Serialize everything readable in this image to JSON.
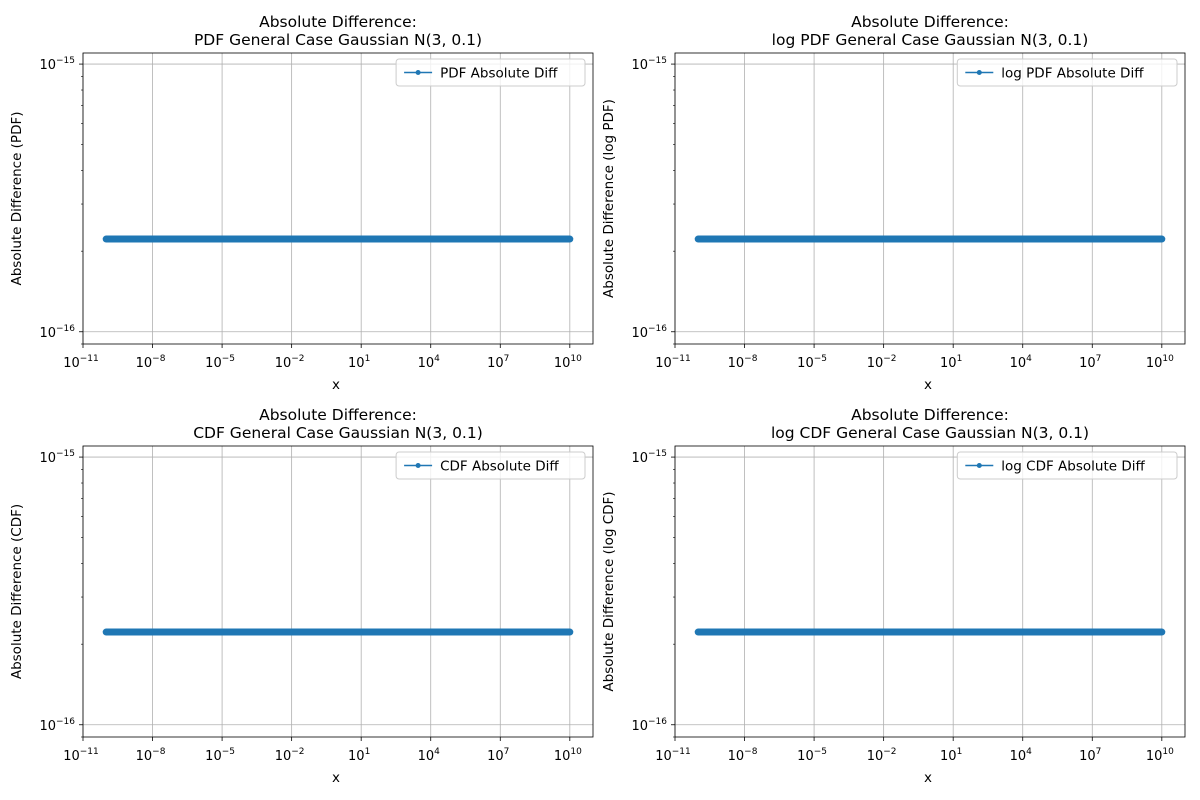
{
  "chart_data": [
    {
      "type": "line",
      "title": [
        "Absolute Difference:",
        "PDF General Case Gaussian N(3, 0.1)"
      ],
      "xlabel": "x",
      "ylabel": "Absolute Difference (PDF)",
      "xscale": "log",
      "yscale": "log",
      "xlim": [
        1e-11,
        100000000000.0
      ],
      "ylim": [
        9e-17,
        1.1e-15
      ],
      "x_ticks": [
        {
          "value": 1e-11,
          "exp": "−11"
        },
        {
          "value": 1e-08,
          "exp": "−8"
        },
        {
          "value": 1e-05,
          "exp": "−5"
        },
        {
          "value": 0.01,
          "exp": "−2"
        },
        {
          "value": 10,
          "exp": "1"
        },
        {
          "value": 10000.0,
          "exp": "4"
        },
        {
          "value": 10000000.0,
          "exp": "7"
        },
        {
          "value": 10000000000.0,
          "exp": "10"
        }
      ],
      "y_ticks": [
        {
          "value": 1e-16,
          "exp": "−16"
        },
        {
          "value": 1e-15,
          "exp": "−15"
        }
      ],
      "grid": true,
      "legend": "top-right",
      "series": [
        {
          "name": "PDF Absolute Diff",
          "x_range": [
            1e-10,
            10000000000.0
          ],
          "y": 2.22e-16,
          "color": "#1f77b4",
          "marker": "point"
        }
      ]
    },
    {
      "type": "line",
      "title": [
        "Absolute Difference:",
        "log PDF General Case Gaussian N(3, 0.1)"
      ],
      "xlabel": "x",
      "ylabel": "Absolute Difference (log PDF)",
      "xscale": "log",
      "yscale": "log",
      "xlim": [
        1e-11,
        100000000000.0
      ],
      "ylim": [
        9e-17,
        1.1e-15
      ],
      "x_ticks": [
        {
          "value": 1e-11,
          "exp": "−11"
        },
        {
          "value": 1e-08,
          "exp": "−8"
        },
        {
          "value": 1e-05,
          "exp": "−5"
        },
        {
          "value": 0.01,
          "exp": "−2"
        },
        {
          "value": 10,
          "exp": "1"
        },
        {
          "value": 10000.0,
          "exp": "4"
        },
        {
          "value": 10000000.0,
          "exp": "7"
        },
        {
          "value": 10000000000.0,
          "exp": "10"
        }
      ],
      "y_ticks": [
        {
          "value": 1e-16,
          "exp": "−16"
        },
        {
          "value": 1e-15,
          "exp": "−15"
        }
      ],
      "grid": true,
      "legend": "top-right",
      "series": [
        {
          "name": "log PDF Absolute Diff",
          "x_range": [
            1e-10,
            10000000000.0
          ],
          "y": 2.22e-16,
          "color": "#1f77b4",
          "marker": "point"
        }
      ]
    },
    {
      "type": "line",
      "title": [
        "Absolute Difference:",
        "CDF General Case Gaussian N(3, 0.1)"
      ],
      "xlabel": "x",
      "ylabel": "Absolute Difference (CDF)",
      "xscale": "log",
      "yscale": "log",
      "xlim": [
        1e-11,
        100000000000.0
      ],
      "ylim": [
        9e-17,
        1.1e-15
      ],
      "x_ticks": [
        {
          "value": 1e-11,
          "exp": "−11"
        },
        {
          "value": 1e-08,
          "exp": "−8"
        },
        {
          "value": 1e-05,
          "exp": "−5"
        },
        {
          "value": 0.01,
          "exp": "−2"
        },
        {
          "value": 10,
          "exp": "1"
        },
        {
          "value": 10000.0,
          "exp": "4"
        },
        {
          "value": 10000000.0,
          "exp": "7"
        },
        {
          "value": 10000000000.0,
          "exp": "10"
        }
      ],
      "y_ticks": [
        {
          "value": 1e-16,
          "exp": "−16"
        },
        {
          "value": 1e-15,
          "exp": "−15"
        }
      ],
      "grid": true,
      "legend": "top-right",
      "series": [
        {
          "name": "CDF Absolute Diff",
          "x_range": [
            1e-10,
            10000000000.0
          ],
          "y": 2.22e-16,
          "color": "#1f77b4",
          "marker": "point"
        }
      ]
    },
    {
      "type": "line",
      "title": [
        "Absolute Difference:",
        "log CDF General Case Gaussian N(3, 0.1)"
      ],
      "xlabel": "x",
      "ylabel": "Absolute Difference (log CDF)",
      "xscale": "log",
      "yscale": "log",
      "xlim": [
        1e-11,
        100000000000.0
      ],
      "ylim": [
        9e-17,
        1.1e-15
      ],
      "x_ticks": [
        {
          "value": 1e-11,
          "exp": "−11"
        },
        {
          "value": 1e-08,
          "exp": "−8"
        },
        {
          "value": 1e-05,
          "exp": "−5"
        },
        {
          "value": 0.01,
          "exp": "−2"
        },
        {
          "value": 10,
          "exp": "1"
        },
        {
          "value": 10000.0,
          "exp": "4"
        },
        {
          "value": 10000000.0,
          "exp": "7"
        },
        {
          "value": 10000000000.0,
          "exp": "10"
        }
      ],
      "y_ticks": [
        {
          "value": 1e-16,
          "exp": "−16"
        },
        {
          "value": 1e-15,
          "exp": "−15"
        }
      ],
      "grid": true,
      "legend": "top-right",
      "series": [
        {
          "name": "log CDF Absolute Diff",
          "x_range": [
            1e-10,
            10000000000.0
          ],
          "y": 2.22e-16,
          "color": "#1f77b4",
          "marker": "point"
        }
      ]
    }
  ]
}
